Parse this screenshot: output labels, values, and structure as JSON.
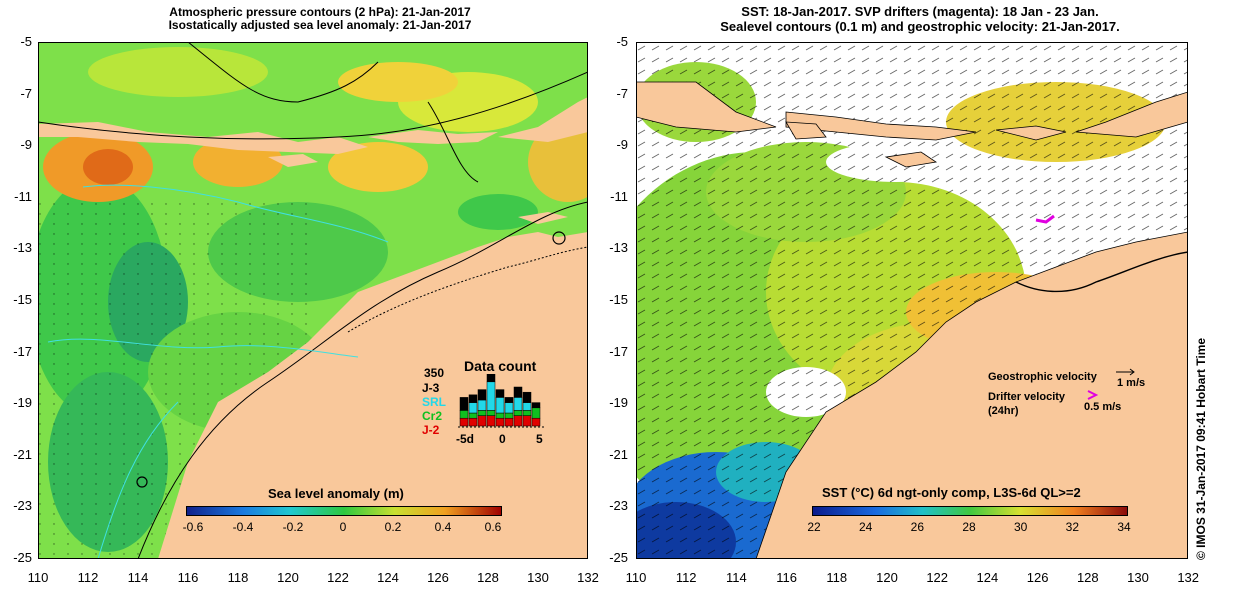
{
  "left_panel": {
    "title_line1": "Atmospheric pressure contours (2 hPa): 21-Jan-2017",
    "title_line2": "Isostatically adjusted sea level anomaly: 21-Jan-2017",
    "y_ticks": [
      "-5",
      "-7",
      "-9",
      "-11",
      "-13",
      "-15",
      "-17",
      "-19",
      "-21",
      "-23",
      "-25"
    ],
    "x_ticks": [
      "110",
      "112",
      "114",
      "116",
      "118",
      "120",
      "122",
      "124",
      "126",
      "128",
      "130",
      "132"
    ],
    "colorbar_title": "Sea level anomaly (m)",
    "colorbar_ticks": [
      "-0.6",
      "-0.4",
      "-0.2",
      "0",
      "0.2",
      "0.4",
      "0.6"
    ],
    "data_count": {
      "title": "Data count",
      "max_label": "350",
      "missions": [
        {
          "label": "J-3",
          "color": "#000000"
        },
        {
          "label": "SRL",
          "color": "#22d8e8"
        },
        {
          "label": "Cr2",
          "color": "#10c020"
        },
        {
          "label": "J-2",
          "color": "#e00000"
        }
      ],
      "x_labels": [
        "-5d",
        "0",
        "5"
      ],
      "bars": [
        {
          "j3": 0.25,
          "srl": 0.0,
          "cr2": 0.15,
          "j2": 0.15
        },
        {
          "j3": 0.15,
          "srl": 0.2,
          "cr2": 0.1,
          "j2": 0.15
        },
        {
          "j3": 0.2,
          "srl": 0.2,
          "cr2": 0.1,
          "j2": 0.2
        },
        {
          "j3": 0.15,
          "srl": 0.55,
          "cr2": 0.1,
          "j2": 0.2
        },
        {
          "j3": 0.15,
          "srl": 0.3,
          "cr2": 0.1,
          "j2": 0.15
        },
        {
          "j3": 0.1,
          "srl": 0.2,
          "cr2": 0.1,
          "j2": 0.15
        },
        {
          "j3": 0.2,
          "srl": 0.25,
          "cr2": 0.1,
          "j2": 0.2
        },
        {
          "j3": 0.2,
          "srl": 0.15,
          "cr2": 0.1,
          "j2": 0.2
        },
        {
          "j3": 0.1,
          "srl": 0.0,
          "cr2": 0.2,
          "j2": 0.15
        }
      ]
    }
  },
  "right_panel": {
    "title_line1": "SST: 18-Jan-2017. SVP drifters (magenta): 18 Jan - 23 Jan.",
    "title_line2": "Sealevel contours (0.1 m) and geostrophic velocity: 21-Jan-2017.",
    "y_ticks": [
      "-5",
      "-7",
      "-9",
      "-11",
      "-13",
      "-15",
      "-17",
      "-19",
      "-21",
      "-23",
      "-25"
    ],
    "x_ticks": [
      "110",
      "112",
      "114",
      "116",
      "118",
      "120",
      "122",
      "124",
      "126",
      "128",
      "130",
      "132"
    ],
    "colorbar_title": "SST (°C) 6d ngt-only comp, L3S-6d QL>=2",
    "colorbar_ticks": [
      "22",
      "24",
      "26",
      "28",
      "30",
      "32",
      "34"
    ],
    "geostrophic_label": "Geostrophic velocity",
    "geostrophic_scale": "1 m/s",
    "drifter_label_line1": "Drifter velocity",
    "drifter_label_line2": "(24hr)",
    "drifter_scale": "0.5 m/s",
    "drifter_color": "#e000e0"
  },
  "copyright": "© IMOS 31-Jan-2017 09:41 Hobart Time",
  "colors": {
    "land": "#f9c89b",
    "sla_low": "#1030a0",
    "sla_mid": "#5cd93a",
    "sla_high": "#b00000",
    "sst_low": "#0a1a8c",
    "sst_high": "#8a0a0a"
  }
}
